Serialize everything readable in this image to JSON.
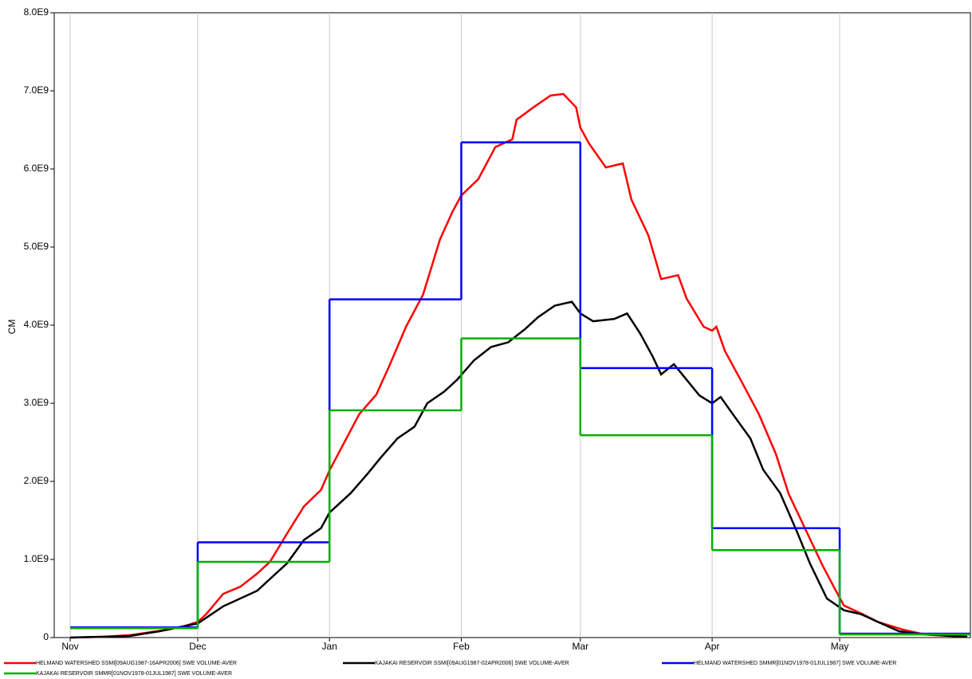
{
  "chart_data": {
    "type": "line",
    "y_label": "CM",
    "xlim": [
      -3.75,
      211.75
    ],
    "ylim": [
      0,
      8000000000.0
    ],
    "grid": "x",
    "xticks": [
      {
        "value": 0,
        "label": "Nov"
      },
      {
        "value": 30,
        "label": "Dec"
      },
      {
        "value": 61,
        "label": "Jan"
      },
      {
        "value": 92,
        "label": "Feb"
      },
      {
        "value": 120,
        "label": "Mar"
      },
      {
        "value": 151,
        "label": "Apr"
      },
      {
        "value": 181,
        "label": "May"
      }
    ],
    "yticks": [
      {
        "value": 0,
        "label": "0"
      },
      {
        "value": 1000000000.0,
        "label": "1.0E9"
      },
      {
        "value": 2000000000.0,
        "label": "2.0E9"
      },
      {
        "value": 3000000000.0,
        "label": "3.0E9"
      },
      {
        "value": 4000000000.0,
        "label": "4.0E9"
      },
      {
        "value": 5000000000.0,
        "label": "5.0E9"
      },
      {
        "value": 6000000000.0,
        "label": "6.0E9"
      },
      {
        "value": 7000000000.0,
        "label": "7.0E9"
      },
      {
        "value": 8000000000.0,
        "label": "8.0E9"
      }
    ],
    "series": [
      {
        "name": "HELMAND WATERSHED SSMI[09AUG1987-16APR2006] SWE VOLUME-AVER",
        "color": "#ff0000",
        "x": [
          0,
          8,
          14,
          19,
          23,
          27,
          30,
          32,
          36,
          40,
          44,
          47,
          51,
          55,
          59,
          61,
          64,
          68,
          72,
          75,
          79,
          83,
          87,
          90,
          92,
          96,
          100,
          104,
          105,
          109,
          113,
          116,
          119,
          120,
          122,
          126,
          130,
          132,
          136,
          139,
          143,
          145,
          149,
          151,
          152,
          154,
          158,
          162,
          166,
          169,
          173,
          177,
          180,
          182,
          186,
          190,
          196,
          201,
          207,
          211
        ],
        "values": [
          0,
          10000000.0,
          30000000.0,
          70000000.0,
          100000000.0,
          150000000.0,
          200000000.0,
          300000000.0,
          560000000.0,
          650000000.0,
          820000000.0,
          970000000.0,
          1330000000.0,
          1680000000.0,
          1890000000.0,
          2140000000.0,
          2450000000.0,
          2860000000.0,
          3110000000.0,
          3470000000.0,
          3980000000.0,
          4390000000.0,
          5100000000.0,
          5460000000.0,
          5660000000.0,
          5870000000.0,
          6280000000.0,
          6380000000.0,
          6630000000.0,
          6790000000.0,
          6940000000.0,
          6960000000.0,
          6790000000.0,
          6530000000.0,
          6330000000.0,
          6020000000.0,
          6070000000.0,
          5610000000.0,
          5150000000.0,
          4590000000.0,
          4640000000.0,
          4340000000.0,
          3980000000.0,
          3930000000.0,
          3980000000.0,
          3670000000.0,
          3270000000.0,
          2860000000.0,
          2350000000.0,
          1840000000.0,
          1380000000.0,
          920000000.0,
          610000000.0,
          410000000.0,
          310000000.0,
          200000000.0,
          100000000.0,
          40000000.0,
          20000000.0,
          10000000.0
        ]
      },
      {
        "name": "KAJAKAI RESERVOIR SSMI[09AUG1987-02APR2006] SWE VOLUME-AVER",
        "color": "#000000",
        "x": [
          0,
          14,
          21,
          30,
          36,
          44,
          47,
          51,
          55,
          59,
          61,
          66,
          70,
          73,
          77,
          81,
          84,
          88,
          91,
          95,
          99,
          103,
          107,
          110,
          114,
          118,
          120,
          123,
          128,
          131,
          134,
          137,
          139,
          142,
          145,
          148,
          151,
          153,
          156,
          160,
          163,
          167,
          171,
          174,
          178,
          182,
          186,
          190,
          195,
          201,
          211
        ],
        "values": [
          0,
          20000000.0,
          80000000.0,
          180000000.0,
          400000000.0,
          600000000.0,
          750000000.0,
          950000000.0,
          1250000000.0,
          1400000000.0,
          1600000000.0,
          1850000000.0,
          2100000000.0,
          2300000000.0,
          2550000000.0,
          2700000000.0,
          3000000000.0,
          3150000000.0,
          3300000000.0,
          3550000000.0,
          3720000000.0,
          3780000000.0,
          3950000000.0,
          4100000000.0,
          4250000000.0,
          4300000000.0,
          4150000000.0,
          4050000000.0,
          4080000000.0,
          4150000000.0,
          3900000000.0,
          3600000000.0,
          3370000000.0,
          3500000000.0,
          3300000000.0,
          3100000000.0,
          3000000000.0,
          3080000000.0,
          2850000000.0,
          2550000000.0,
          2150000000.0,
          1850000000.0,
          1350000000.0,
          950000000.0,
          500000000.0,
          350000000.0,
          300000000.0,
          200000000.0,
          80000000.0,
          40000000.0,
          10000000.0
        ]
      },
      {
        "name": "HELMAND WATERSHED SMMR[01NOV1978-01JUL1987] SWE VOLUME-AVER",
        "color": "#0000ff",
        "step": "post",
        "x": [
          0,
          30,
          61,
          92,
          120,
          151,
          181
        ],
        "values": [
          130000000.0,
          1220000000.0,
          4330000000.0,
          6340000000.0,
          3450000000.0,
          1400000000.0,
          50000000.0
        ]
      },
      {
        "name": "KAJAKAI RESERVOIR SMMR[01NOV1978-01JUL1987] SWE VOLUME-AVER",
        "color": "#00b000",
        "step": "post",
        "x": [
          0,
          30,
          61,
          92,
          120,
          151,
          181
        ],
        "values": [
          120000000.0,
          970000000.0,
          2910000000.0,
          3830000000.0,
          2590000000.0,
          1120000000.0,
          40000000.0
        ]
      }
    ]
  }
}
